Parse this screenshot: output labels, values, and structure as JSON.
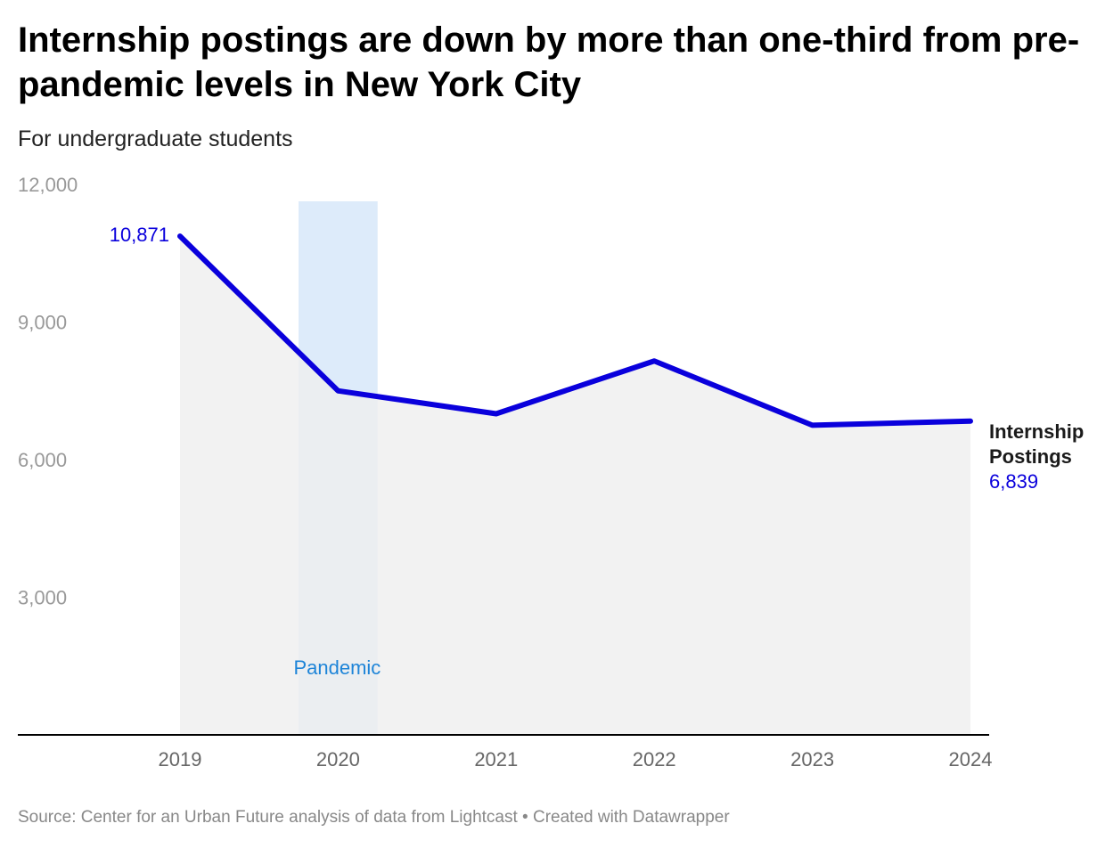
{
  "title": "Internship postings are down by more than one-third from pre-pandemic levels in New York City",
  "subtitle": "For undergraduate students",
  "footer": "Source: Center for an Urban Future analysis of data from Lightcast • Created with Datawrapper",
  "colors": {
    "line": "#0a00dc",
    "area": "#efefef",
    "highlight": "#ddebfa",
    "highlight_label": "#1d84d8",
    "axis_text": "#999999",
    "baseline": "#000000",
    "series_label": "#1a1a1a"
  },
  "chart_data": {
    "type": "area",
    "title": "Internship postings are down by more than one-third from pre-pandemic levels in New York City",
    "subtitle": "For undergraduate students",
    "x": [
      "2019",
      "2020",
      "2021",
      "2022",
      "2023",
      "2024"
    ],
    "series": [
      {
        "name": "Internship Postings",
        "values": [
          10871,
          7500,
          7000,
          8150,
          6750,
          6839
        ]
      }
    ],
    "ylim": [
      0,
      12000
    ],
    "yticks": [
      3000,
      6000,
      9000,
      12000
    ],
    "ytick_labels": [
      "3,000",
      "6,000",
      "9,000",
      "12,000"
    ],
    "grid": false,
    "highlight": {
      "label": "Pandemic",
      "from_year": 2019.75,
      "to_year": 2020.25
    },
    "labels": {
      "start_value": "10,871",
      "end_value": "6,839",
      "series_line1": "Internship",
      "series_line2": "Postings"
    }
  }
}
